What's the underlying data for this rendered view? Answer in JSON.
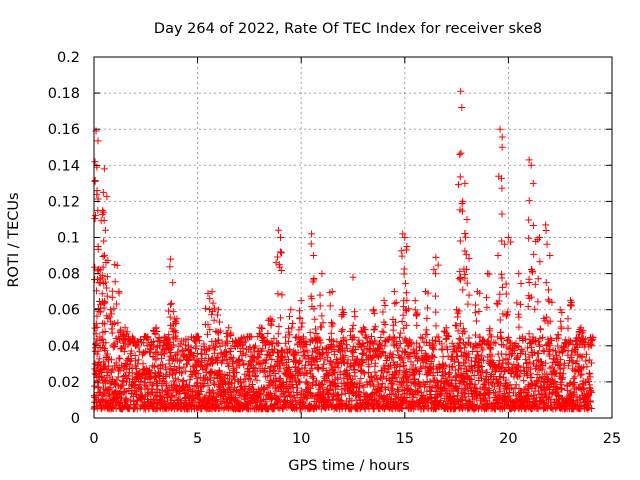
{
  "chart_data": {
    "type": "scatter",
    "title": "Day 264 of 2022, Rate Of TEC Index for receiver ske8",
    "xlabel": "GPS time / hours",
    "ylabel": "ROTI / TECUs",
    "xlim": [
      0,
      25
    ],
    "ylim": [
      0,
      0.2
    ],
    "x_ticks": [
      0,
      5,
      10,
      15,
      20,
      25
    ],
    "x_tick_labels": [
      "0",
      "5",
      "10",
      "15",
      "20",
      "25"
    ],
    "y_ticks": [
      0,
      0.02,
      0.04,
      0.06,
      0.08,
      0.1,
      0.12,
      0.14,
      0.16,
      0.18,
      0.2
    ],
    "y_tick_labels": [
      "0",
      "0.02",
      "0.04",
      "0.06",
      "0.08",
      "0.1",
      "0.12",
      "0.14",
      "0.16",
      "0.18",
      "0.2"
    ],
    "grid": true,
    "marker": "+",
    "color": "#ff0000",
    "series": [
      {
        "name": "ROTI",
        "x": [
          0.05,
          0.1,
          0.15,
          0.2,
          0.3,
          0.4,
          0.45,
          0.5,
          0.55,
          0.6,
          0.8,
          1.0,
          1.2,
          1.5,
          2.0,
          2.5,
          3.0,
          3.5,
          3.7,
          3.8,
          4.0,
          4.5,
          5.0,
          5.5,
          5.7,
          6.0,
          6.5,
          7.0,
          7.5,
          8.0,
          8.5,
          8.9,
          9.0,
          9.5,
          10.0,
          10.5,
          10.6,
          11.0,
          11.5,
          12.0,
          12.5,
          13.0,
          13.5,
          14.0,
          14.5,
          14.9,
          15.0,
          15.1,
          15.5,
          16.0,
          16.5,
          17.0,
          17.5,
          17.7,
          17.75,
          17.8,
          17.9,
          18.0,
          18.5,
          19.0,
          19.5,
          19.6,
          19.7,
          20.0,
          20.5,
          21.0,
          21.1,
          21.2,
          21.5,
          21.8,
          22.0,
          22.5,
          23.0,
          23.5,
          24.0
        ],
        "y": [
          0.142,
          0.159,
          0.126,
          0.095,
          0.082,
          0.079,
          0.125,
          0.138,
          0.104,
          0.072,
          0.06,
          0.085,
          0.07,
          0.05,
          0.04,
          0.045,
          0.05,
          0.04,
          0.088,
          0.075,
          0.055,
          0.03,
          0.045,
          0.069,
          0.07,
          0.06,
          0.05,
          0.04,
          0.045,
          0.05,
          0.055,
          0.104,
          0.092,
          0.06,
          0.065,
          0.102,
          0.09,
          0.08,
          0.07,
          0.06,
          0.078,
          0.05,
          0.06,
          0.065,
          0.07,
          0.102,
          0.1,
          0.095,
          0.065,
          0.07,
          0.089,
          0.05,
          0.06,
          0.181,
          0.172,
          0.12,
          0.13,
          0.11,
          0.07,
          0.08,
          0.09,
          0.16,
          0.15,
          0.1,
          0.08,
          0.143,
          0.14,
          0.13,
          0.1,
          0.107,
          0.09,
          0.06,
          0.065,
          0.05,
          0.04
        ],
        "baseline_range": [
          0.005,
          0.045
        ],
        "point_interval_hours": 0.02
      }
    ]
  }
}
